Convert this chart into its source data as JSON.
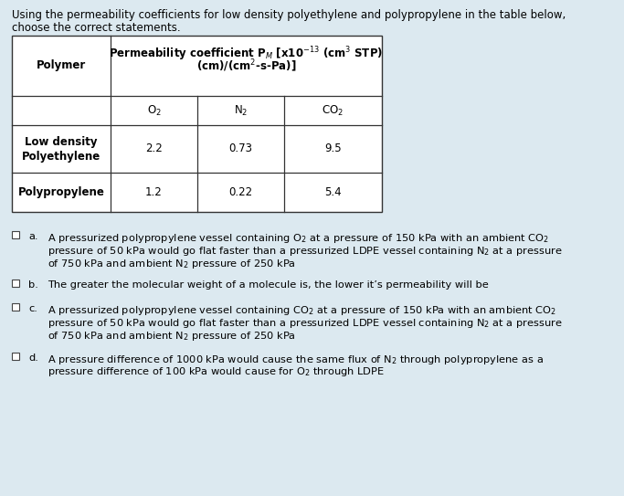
{
  "bg_color": "#dce9f0",
  "title_line1": "Using the permeability coefficients for low density polyethylene and polypropylene in the table below,",
  "title_line2": "choose the correct statements.",
  "table_col0_header": "Polymer",
  "table_header_line1": "Permeability coefficient P$_M$ [x10$^{-13}$ (cm$^3$ STP)",
  "table_header_line2": "(cm)/(cm$^2$-s-Pa)]",
  "table_subheaders": [
    "O$_2$",
    "N$_2$",
    "CO$_2$"
  ],
  "table_rows": [
    [
      "Low density\nPolyethylene",
      "2.2",
      "0.73",
      "9.5"
    ],
    [
      "Polypropylene",
      "1.2",
      "0.22",
      "5.4"
    ]
  ],
  "options": [
    {
      "label": "a.",
      "lines": [
        "A pressurized polypropylene vessel containing O$_2$ at a pressure of 150 kPa with an ambient CO$_2$",
        "pressure of 50 kPa would go flat faster than a pressurized LDPE vessel containing N$_2$ at a pressure",
        "of 750 kPa and ambient N$_2$ pressure of 250 kPa"
      ]
    },
    {
      "label": "b.",
      "lines": [
        "The greater the molecular weight of a molecule is, the lower it’s permeability will be"
      ]
    },
    {
      "label": "c.",
      "lines": [
        "A pressurized polypropylene vessel containing CO$_2$ at a pressure of 150 kPa with an ambient CO$_2$",
        "pressure of 50 kPa would go flat faster than a pressurized LDPE vessel containing N$_2$ at a pressure",
        "of 750 kPa and ambient N$_2$ pressure of 250 kPa"
      ]
    },
    {
      "label": "d.",
      "lines": [
        "A pressure difference of 1000 kPa would cause the same flux of N$_2$ through polypropylene as a",
        "pressure difference of 100 kPa would cause for O$_2$ through LDPE"
      ]
    }
  ],
  "fs_title": 8.5,
  "fs_table_header": 8.5,
  "fs_table_data": 8.5,
  "fs_options": 8.2
}
